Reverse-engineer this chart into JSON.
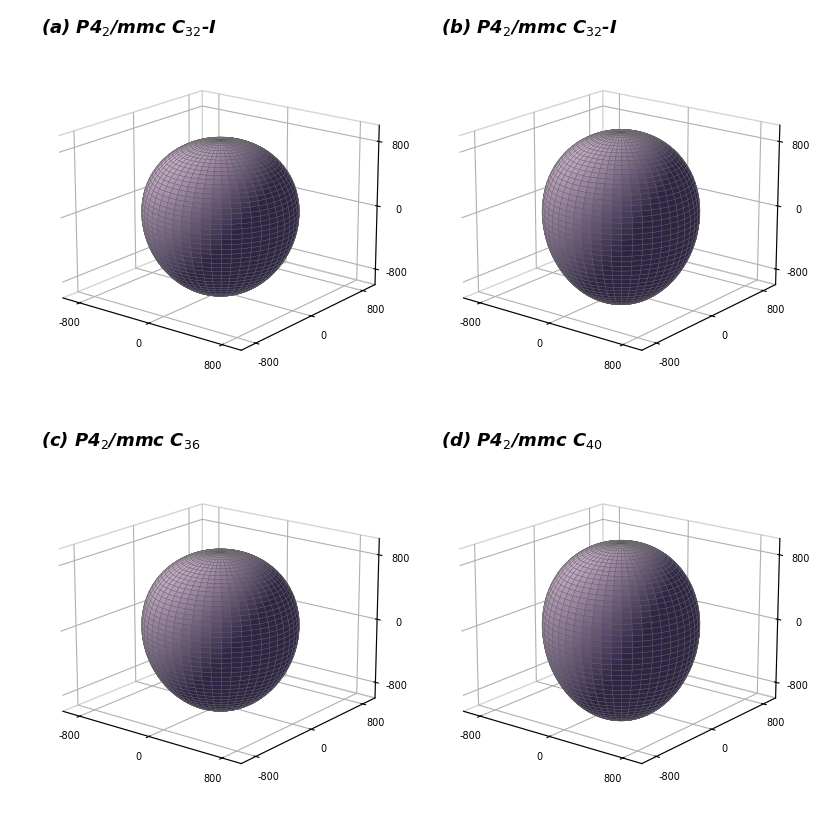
{
  "panels": [
    {
      "label": "(a)",
      "c_scale": 1.35
    },
    {
      "label": "(b)",
      "c_scale": 1.5
    },
    {
      "label": "(c)",
      "c_scale": 1.38
    },
    {
      "label": "(d)",
      "c_scale": 1.55
    }
  ],
  "titles": [
    "(a) P4$_2$/mmc C$_{32}$-I",
    "(b) P4$_2$/mmc C$_{32}$-I",
    "(c) P4$_2$/mmc C$_{36}$",
    "(d) P4$_2$/mmc C$_{40}$"
  ],
  "axis_range": 1000,
  "axis_ticks": [
    -800,
    0,
    800
  ],
  "surface_color_light": "#c8aec8",
  "surface_color_dark": "#2e2545",
  "edge_color": "#666666",
  "background_color": "#ffffff",
  "pane_edge_color": "#aaaaaa",
  "elev": 18,
  "azim": -52,
  "n_theta": 50,
  "n_phi": 50,
  "R_base": 700,
  "light_azdeg": 220,
  "light_altdeg": 50
}
